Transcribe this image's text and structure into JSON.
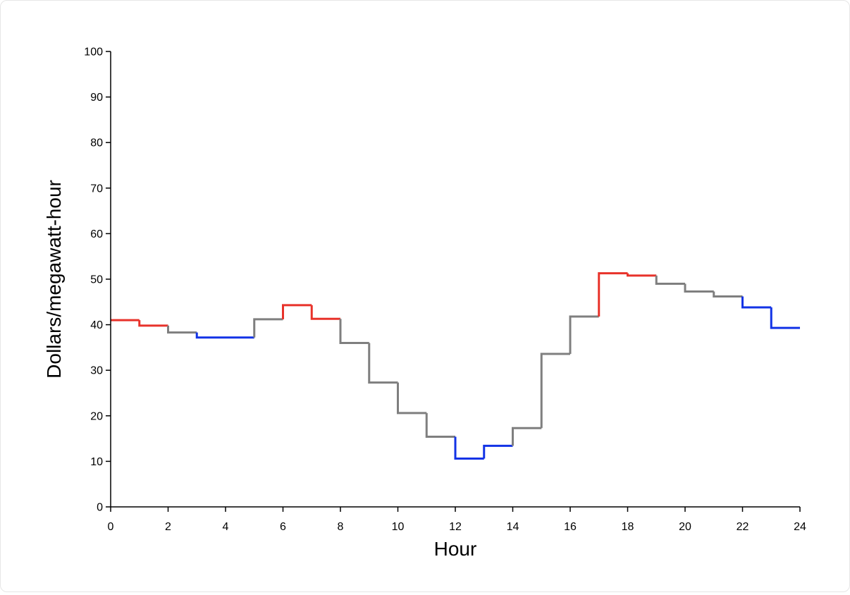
{
  "chart_data": {
    "type": "line",
    "step": "post",
    "title": "",
    "xlabel": "Hour",
    "ylabel": "Dollars/megawatt-hour",
    "xlim": [
      0,
      24
    ],
    "ylim": [
      0,
      100
    ],
    "xticks": [
      0,
      2,
      4,
      6,
      8,
      10,
      12,
      14,
      16,
      18,
      20,
      22,
      24
    ],
    "yticks": [
      0,
      10,
      20,
      30,
      40,
      50,
      60,
      70,
      80,
      90,
      100
    ],
    "grid": false,
    "legend": "none",
    "hours": [
      0,
      1,
      2,
      3,
      4,
      5,
      6,
      7,
      8,
      9,
      10,
      11,
      12,
      13,
      14,
      15,
      16,
      17,
      18,
      19,
      20,
      21,
      22,
      23
    ],
    "values": [
      41.0,
      39.8,
      38.3,
      37.2,
      37.2,
      41.2,
      44.3,
      41.3,
      36.0,
      27.3,
      20.6,
      15.4,
      10.6,
      13.4,
      17.3,
      33.6,
      41.8,
      51.3,
      50.8,
      49.0,
      47.3,
      46.2,
      43.8,
      39.3
    ],
    "segment_category": [
      "high",
      "high",
      "normal",
      "low",
      "low",
      "normal",
      "high",
      "high",
      "normal",
      "normal",
      "normal",
      "normal",
      "low",
      "low",
      "normal",
      "normal",
      "normal",
      "high",
      "high",
      "normal",
      "normal",
      "normal",
      "low",
      "low"
    ],
    "colors": {
      "high": "#e8322a",
      "normal": "#7f7f7f",
      "low": "#1233e6"
    }
  }
}
